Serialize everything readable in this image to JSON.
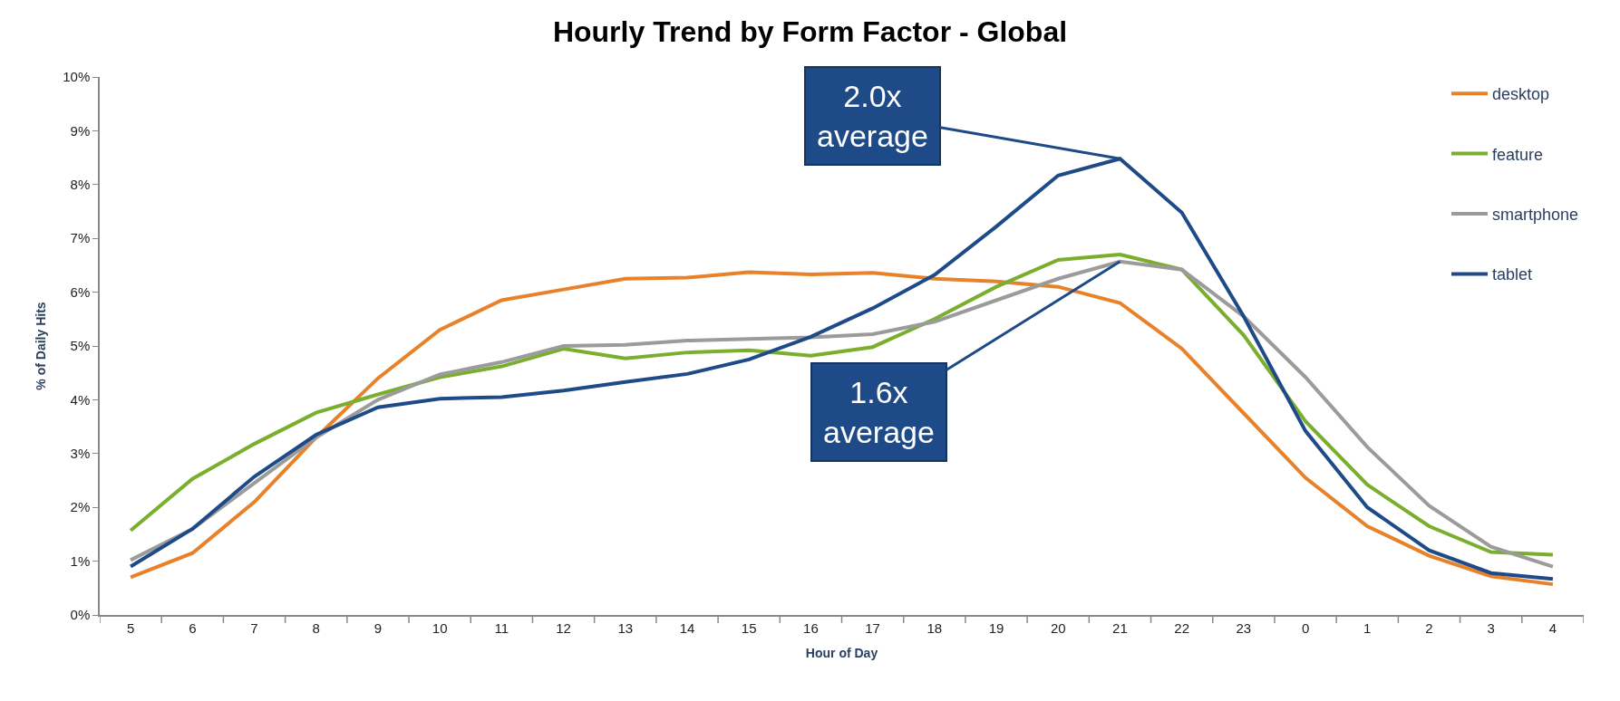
{
  "chart_data": {
    "type": "line",
    "title": "Hourly Trend by Form Factor - Global",
    "xlabel": "Hour of Day",
    "ylabel": "% of Daily Hits",
    "categories": [
      "5",
      "6",
      "7",
      "8",
      "9",
      "10",
      "11",
      "12",
      "13",
      "14",
      "15",
      "16",
      "17",
      "18",
      "19",
      "20",
      "21",
      "22",
      "23",
      "0",
      "1",
      "2",
      "3",
      "4"
    ],
    "series": [
      {
        "name": "desktop",
        "color": "#e8822a",
        "values": [
          0.7,
          1.15,
          2.1,
          3.3,
          4.4,
          5.3,
          5.85,
          6.05,
          6.25,
          6.27,
          6.37,
          6.33,
          6.36,
          6.25,
          6.2,
          6.1,
          5.8,
          4.95,
          3.75,
          2.55,
          1.65,
          1.1,
          0.72,
          0.57
        ]
      },
      {
        "name": "feature",
        "color": "#7aae2e",
        "values": [
          1.57,
          2.53,
          3.18,
          3.76,
          4.1,
          4.42,
          4.62,
          4.95,
          4.77,
          4.88,
          4.92,
          4.82,
          4.98,
          5.5,
          6.1,
          6.6,
          6.7,
          6.42,
          5.2,
          3.6,
          2.42,
          1.65,
          1.17,
          1.12
        ]
      },
      {
        "name": "smartphone",
        "color": "#9b9b9b",
        "values": [
          1.02,
          1.6,
          2.45,
          3.3,
          4.0,
          4.47,
          4.7,
          5.0,
          5.02,
          5.1,
          5.13,
          5.16,
          5.22,
          5.45,
          5.85,
          6.25,
          6.57,
          6.42,
          5.55,
          4.42,
          3.12,
          2.03,
          1.27,
          0.9
        ]
      },
      {
        "name": "tablet",
        "color": "#1e4a87",
        "values": [
          0.9,
          1.6,
          2.57,
          3.35,
          3.86,
          4.02,
          4.05,
          4.17,
          4.33,
          4.48,
          4.75,
          5.17,
          5.7,
          6.32,
          7.22,
          8.17,
          8.48,
          7.48,
          5.55,
          3.42,
          2.0,
          1.2,
          0.78,
          0.67
        ]
      }
    ],
    "ylim": [
      0,
      10
    ],
    "yticks": [
      {
        "value": 0,
        "label": "0%"
      },
      {
        "value": 1,
        "label": "1%"
      },
      {
        "value": 2,
        "label": "2%"
      },
      {
        "value": 3,
        "label": "3%"
      },
      {
        "value": 4,
        "label": "4%"
      },
      {
        "value": 5,
        "label": "5%"
      },
      {
        "value": 6,
        "label": "6%"
      },
      {
        "value": 7,
        "label": "7%"
      },
      {
        "value": 8,
        "label": "8%"
      },
      {
        "value": 9,
        "label": "9%"
      },
      {
        "value": 10,
        "label": "10%"
      }
    ],
    "annotations": [
      {
        "text": "2.0x\naverage",
        "x": "21",
        "y": 8.48
      },
      {
        "text": "1.6x\naverage",
        "x": "21",
        "y": 6.57
      }
    ],
    "legend": "top right",
    "marker": "none",
    "line_style": "solid"
  }
}
